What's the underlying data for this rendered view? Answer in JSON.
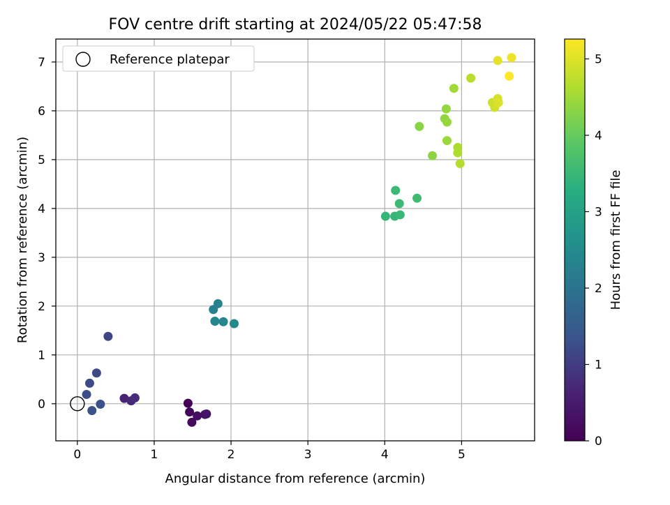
{
  "chart_data": {
    "type": "scatter",
    "title": "FOV centre drift starting at 2024/05/22 05:47:58",
    "xlabel": "Angular distance from reference (arcmin)",
    "ylabel": "Rotation from reference (arcmin)",
    "xlim": [
      -0.28,
      5.95
    ],
    "ylim": [
      -0.76,
      7.47
    ],
    "x_ticks": [
      0,
      1,
      2,
      3,
      4,
      5
    ],
    "y_ticks": [
      0,
      1,
      2,
      3,
      4,
      5,
      6,
      7
    ],
    "grid": true,
    "legend": {
      "position": "upper-left",
      "entries": [
        "Reference platepar"
      ]
    },
    "colorbar": {
      "label": "Hours from first FF file",
      "range": [
        0,
        5.26
      ],
      "ticks": [
        0,
        1,
        2,
        3,
        4,
        5
      ],
      "colormap": "viridis"
    },
    "reference_point": {
      "x": 0,
      "y": 0,
      "label": "Reference platepar"
    },
    "points": [
      {
        "x": 1.44,
        "y": 0.01,
        "t": 0.0
      },
      {
        "x": 1.46,
        "y": -0.17,
        "t": 0.08
      },
      {
        "x": 1.49,
        "y": -0.38,
        "t": 0.15
      },
      {
        "x": 1.56,
        "y": -0.25,
        "t": 0.22
      },
      {
        "x": 1.68,
        "y": -0.21,
        "t": 0.3
      },
      {
        "x": 1.66,
        "y": -0.22,
        "t": 0.36
      },
      {
        "x": 0.61,
        "y": 0.11,
        "t": 0.62
      },
      {
        "x": 0.7,
        "y": 0.06,
        "t": 0.7
      },
      {
        "x": 0.75,
        "y": 0.12,
        "t": 0.77
      },
      {
        "x": 0.4,
        "y": 1.38,
        "t": 1.12
      },
      {
        "x": 0.25,
        "y": 0.63,
        "t": 1.18
      },
      {
        "x": 0.16,
        "y": 0.42,
        "t": 1.22
      },
      {
        "x": 0.12,
        "y": 0.19,
        "t": 1.26
      },
      {
        "x": 0.3,
        "y": -0.01,
        "t": 1.3
      },
      {
        "x": 0.19,
        "y": -0.14,
        "t": 1.34
      },
      {
        "x": 1.77,
        "y": 1.93,
        "t": 2.28
      },
      {
        "x": 1.83,
        "y": 2.05,
        "t": 2.33
      },
      {
        "x": 1.79,
        "y": 1.69,
        "t": 2.38
      },
      {
        "x": 1.9,
        "y": 1.68,
        "t": 2.42
      },
      {
        "x": 2.04,
        "y": 1.64,
        "t": 2.46
      },
      {
        "x": 4.01,
        "y": 3.84,
        "t": 3.45
      },
      {
        "x": 4.13,
        "y": 3.84,
        "t": 3.48
      },
      {
        "x": 4.2,
        "y": 3.87,
        "t": 3.5
      },
      {
        "x": 4.14,
        "y": 4.37,
        "t": 3.52
      },
      {
        "x": 4.19,
        "y": 4.1,
        "t": 3.55
      },
      {
        "x": 4.42,
        "y": 4.21,
        "t": 3.58
      },
      {
        "x": 4.45,
        "y": 5.68,
        "t": 4.3
      },
      {
        "x": 4.62,
        "y": 5.08,
        "t": 4.34
      },
      {
        "x": 4.78,
        "y": 5.84,
        "t": 4.37
      },
      {
        "x": 4.8,
        "y": 6.04,
        "t": 4.4
      },
      {
        "x": 4.81,
        "y": 5.77,
        "t": 4.42
      },
      {
        "x": 4.81,
        "y": 5.39,
        "t": 4.45
      },
      {
        "x": 4.9,
        "y": 6.46,
        "t": 4.5
      },
      {
        "x": 4.95,
        "y": 5.25,
        "t": 4.6
      },
      {
        "x": 4.95,
        "y": 5.14,
        "t": 4.62
      },
      {
        "x": 4.98,
        "y": 4.92,
        "t": 4.66
      },
      {
        "x": 5.12,
        "y": 6.67,
        "t": 4.7
      },
      {
        "x": 5.4,
        "y": 6.17,
        "t": 4.86
      },
      {
        "x": 5.43,
        "y": 6.07,
        "t": 4.9
      },
      {
        "x": 5.47,
        "y": 6.25,
        "t": 4.94
      },
      {
        "x": 5.48,
        "y": 6.17,
        "t": 4.97
      },
      {
        "x": 5.47,
        "y": 7.03,
        "t": 5.05
      },
      {
        "x": 5.65,
        "y": 7.09,
        "t": 5.12
      },
      {
        "x": 5.62,
        "y": 6.71,
        "t": 5.26
      }
    ]
  }
}
